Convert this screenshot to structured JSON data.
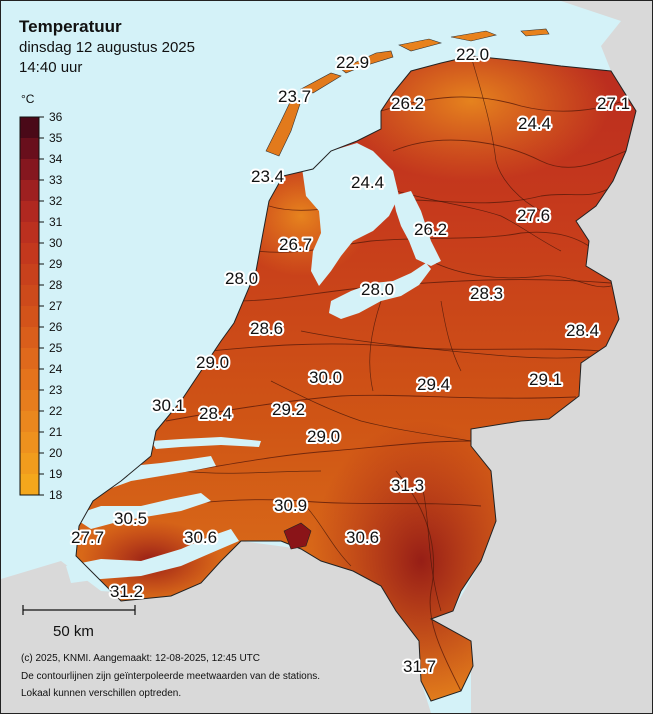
{
  "header": {
    "title": "Temperatuur",
    "date": "dinsdag 12 augustus 2025",
    "time": "14:40 uur"
  },
  "legend": {
    "unit": "°C",
    "min": 18,
    "max": 36,
    "ticks": [
      "36",
      "35",
      "34",
      "33",
      "32",
      "31",
      "30",
      "29",
      "28",
      "27",
      "26",
      "25",
      "24",
      "23",
      "22",
      "21",
      "20",
      "19",
      "18"
    ],
    "colors": {
      "low": "#f2a41c",
      "mid": "#c42e22",
      "high": "#3d0618"
    }
  },
  "colors": {
    "sea": "#d4f2f8",
    "land_abroad": "#d9d9d9"
  },
  "observations": [
    {
      "label": "22.9",
      "value": 22.9
    },
    {
      "label": "22.0",
      "value": 22.0
    },
    {
      "label": "23.7",
      "value": 23.7
    },
    {
      "label": "26.2",
      "value": 26.2
    },
    {
      "label": "27.1",
      "value": 27.1
    },
    {
      "label": "24.4",
      "value": 24.4
    },
    {
      "label": "23.4",
      "value": 23.4
    },
    {
      "label": "24.4",
      "value": 24.4
    },
    {
      "label": "27.6",
      "value": 27.6
    },
    {
      "label": "26.2",
      "value": 26.2
    },
    {
      "label": "26.7",
      "value": 26.7
    },
    {
      "label": "28.0",
      "value": 28.0
    },
    {
      "label": "28.0",
      "value": 28.0
    },
    {
      "label": "28.3",
      "value": 28.3
    },
    {
      "label": "28.6",
      "value": 28.6
    },
    {
      "label": "28.4",
      "value": 28.4
    },
    {
      "label": "29.0",
      "value": 29.0
    },
    {
      "label": "30.0",
      "value": 30.0
    },
    {
      "label": "29.4",
      "value": 29.4
    },
    {
      "label": "29.1",
      "value": 29.1
    },
    {
      "label": "30.1",
      "value": 30.1
    },
    {
      "label": "28.4",
      "value": 28.4
    },
    {
      "label": "29.2",
      "value": 29.2
    },
    {
      "label": "29.0",
      "value": 29.0
    },
    {
      "label": "31.3",
      "value": 31.3
    },
    {
      "label": "30.9",
      "value": 30.9
    },
    {
      "label": "30.5",
      "value": 30.5
    },
    {
      "label": "30.6",
      "value": 30.6
    },
    {
      "label": "30.6",
      "value": 30.6
    },
    {
      "label": "27.7",
      "value": 27.7
    },
    {
      "label": "31.2",
      "value": 31.2
    },
    {
      "label": "31.7",
      "value": 31.7
    }
  ],
  "scale_bar": {
    "label": "50 km"
  },
  "footer": {
    "line1": "(c) 2025, KNMI. Aangemaakt: 12-08-2025, 12:45 UTC",
    "line2": "De contourlijnen zijn geïnterpoleerde meetwaarden van de stations.",
    "line3": "Lokaal kunnen verschillen optreden."
  }
}
